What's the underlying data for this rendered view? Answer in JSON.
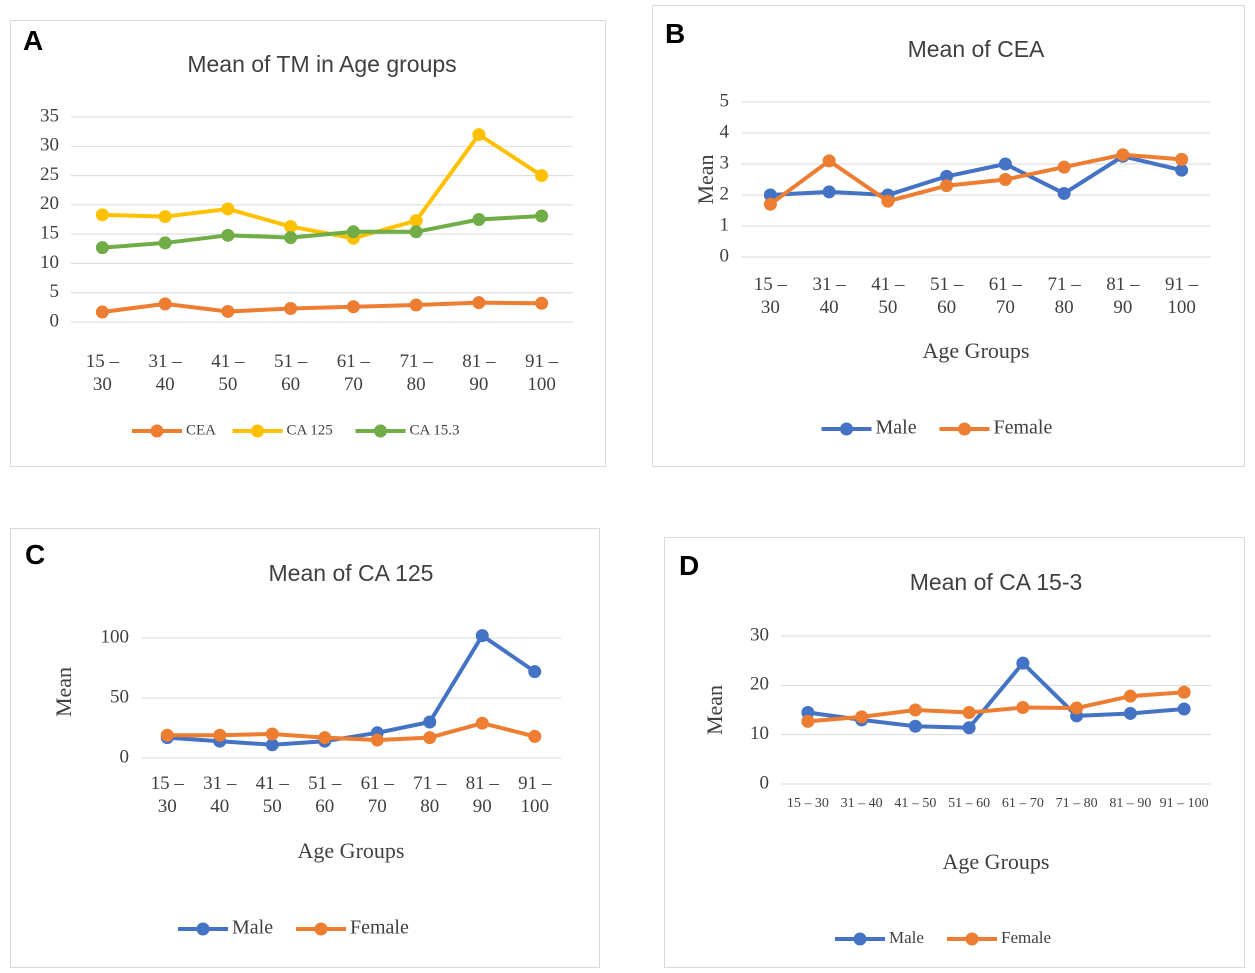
{
  "chart_data": [
    {
      "type": "line",
      "panel": "A",
      "title": "Mean of TM in Age groups",
      "categories": [
        "15 – 30",
        "31 – 40",
        "41 – 50",
        "51 – 60",
        "61 – 70",
        "71 – 80",
        "81 – 90",
        "91 – 100"
      ],
      "series": [
        {
          "name": "CEA",
          "color": "#ed7d31",
          "values": [
            1.7,
            3.1,
            1.8,
            2.3,
            2.6,
            2.9,
            3.3,
            3.2
          ]
        },
        {
          "name": "CA 125",
          "color": "#ffc000",
          "values": [
            18.3,
            18.0,
            19.3,
            16.3,
            14.3,
            17.3,
            32.0,
            25.0
          ]
        },
        {
          "name": "CA 15.3",
          "color": "#70ad47",
          "values": [
            12.7,
            13.5,
            14.8,
            14.4,
            15.4,
            15.4,
            17.5,
            18.1
          ]
        }
      ],
      "ylim": [
        0,
        35
      ],
      "yticks": [
        0,
        5,
        10,
        15,
        20,
        25,
        30,
        35
      ],
      "grid": true
    },
    {
      "type": "line",
      "panel": "B",
      "title": "Mean of CEA",
      "ylabel": "Mean",
      "xlabel": "Age Groups",
      "categories": [
        "15 – 30",
        "31 – 40",
        "41 – 50",
        "51 – 60",
        "61 – 70",
        "71 – 80",
        "81 – 90",
        "91 – 100"
      ],
      "series": [
        {
          "name": "Male",
          "color": "#4472c4",
          "values": [
            2.0,
            2.1,
            2.0,
            2.6,
            3.0,
            2.05,
            3.25,
            2.8
          ]
        },
        {
          "name": "Female",
          "color": "#ed7d31",
          "values": [
            1.7,
            3.1,
            1.8,
            2.3,
            2.5,
            2.9,
            3.3,
            3.15
          ]
        }
      ],
      "ylim": [
        0,
        5
      ],
      "yticks": [
        0,
        1,
        2,
        3,
        4,
        5
      ],
      "grid": true
    },
    {
      "type": "line",
      "panel": "C",
      "title": "Mean of CA 125",
      "ylabel": "Mean",
      "xlabel": "Age Groups",
      "categories": [
        "15 – 30",
        "31 – 40",
        "41 – 50",
        "51 – 60",
        "61 – 70",
        "71 – 80",
        "81 – 90",
        "91 – 100"
      ],
      "series": [
        {
          "name": "Male",
          "color": "#4472c4",
          "values": [
            17,
            14,
            11,
            14,
            21,
            30,
            102,
            72
          ]
        },
        {
          "name": "Female",
          "color": "#ed7d31",
          "values": [
            19,
            19,
            20,
            17,
            15,
            17,
            29,
            18
          ]
        }
      ],
      "ylim": [
        0,
        110
      ],
      "yticks": [
        0,
        50,
        100
      ],
      "grid": true
    },
    {
      "type": "line",
      "panel": "D",
      "title": "Mean of CA 15-3",
      "ylabel": "Mean",
      "xlabel": "Age Groups",
      "categories": [
        "15 – 30",
        "31 – 40",
        "41 – 50",
        "51 – 60",
        "61 – 70",
        "71 – 80",
        "81 – 90",
        "91 – 100"
      ],
      "series": [
        {
          "name": "Male",
          "color": "#4472c4",
          "values": [
            14.5,
            13.0,
            11.7,
            11.4,
            24.5,
            13.8,
            14.3,
            15.2
          ]
        },
        {
          "name": "Female",
          "color": "#ed7d31",
          "values": [
            12.7,
            13.6,
            15.0,
            14.5,
            15.5,
            15.4,
            17.8,
            18.6
          ]
        }
      ],
      "ylim": [
        0,
        30
      ],
      "yticks": [
        0,
        10,
        20,
        30
      ],
      "grid": true
    }
  ]
}
